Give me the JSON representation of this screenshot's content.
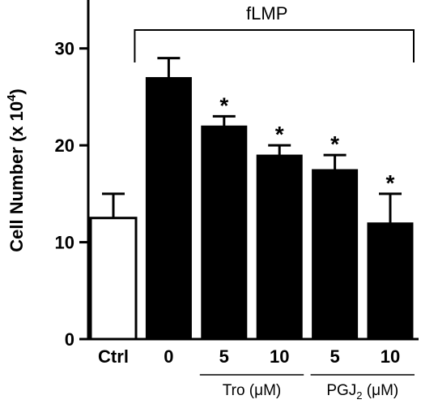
{
  "chart_data": {
    "type": "bar",
    "ylabel": {
      "main": "Cell Number (x 10",
      "sup": "4",
      "close": ")"
    },
    "ylim": [
      0,
      35
    ],
    "yticks": [
      0,
      10,
      20,
      30
    ],
    "categories": [
      "Ctrl",
      "0",
      "5",
      "10",
      "5",
      "10"
    ],
    "values": [
      12.5,
      27,
      22,
      19,
      17.5,
      12
    ],
    "errors": [
      2.5,
      2,
      1,
      1,
      1.5,
      3
    ],
    "fill": [
      "open",
      "solid",
      "solid",
      "solid",
      "solid",
      "solid"
    ],
    "significant": [
      false,
      false,
      true,
      true,
      true,
      true
    ],
    "significance_mark": "*",
    "bracket": {
      "label": "fLMP",
      "from_index": 1,
      "to_index": 5
    },
    "groups": [
      {
        "name": "Tro",
        "unit": "(μM)",
        "indices": [
          2,
          3
        ]
      },
      {
        "name": "PGJ",
        "sub": "2",
        "unit": "(μM)",
        "indices": [
          4,
          5
        ]
      }
    ],
    "colors": {
      "solid": "#000000",
      "open": "#ffffff",
      "stroke": "#000000"
    }
  }
}
